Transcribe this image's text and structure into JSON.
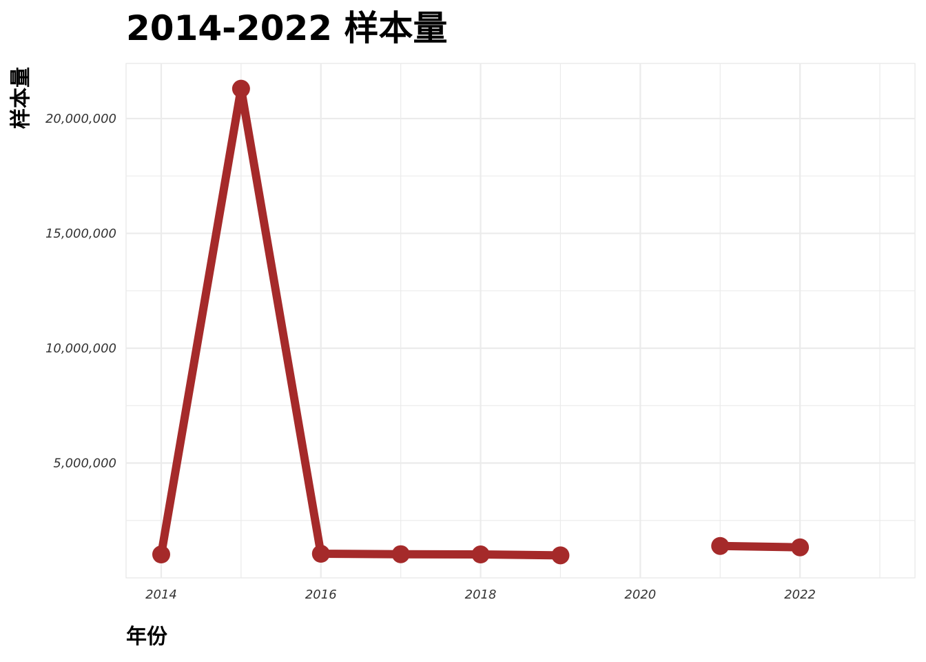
{
  "chart_data": {
    "type": "line",
    "title": "2014-2022 样本量",
    "xlabel": "年份",
    "ylabel": "样本量",
    "xlim": [
      2013.56,
      2023.44
    ],
    "ylim": [
      0,
      22400000
    ],
    "x_ticks": [
      2014,
      2016,
      2018,
      2020,
      2022
    ],
    "x_tick_labels": [
      "2014",
      "2016",
      "2018",
      "2020",
      "2022"
    ],
    "y_ticks": [
      5000000,
      10000000,
      15000000,
      20000000
    ],
    "y_tick_labels": [
      "5,000,000",
      "10,000,000",
      "15,000,000",
      "20,000,000"
    ],
    "grid": true,
    "legend": "none",
    "color": "#a52a2a",
    "series": [
      {
        "segments": [
          {
            "x": [
              2014,
              2015,
              2016,
              2017,
              2018,
              2019
            ],
            "y": [
              1020000,
              21300000,
              1050000,
              1030000,
              1020000,
              980000
            ]
          },
          {
            "x": [
              2021,
              2022
            ],
            "y": [
              1390000,
              1330000
            ]
          }
        ]
      }
    ]
  }
}
